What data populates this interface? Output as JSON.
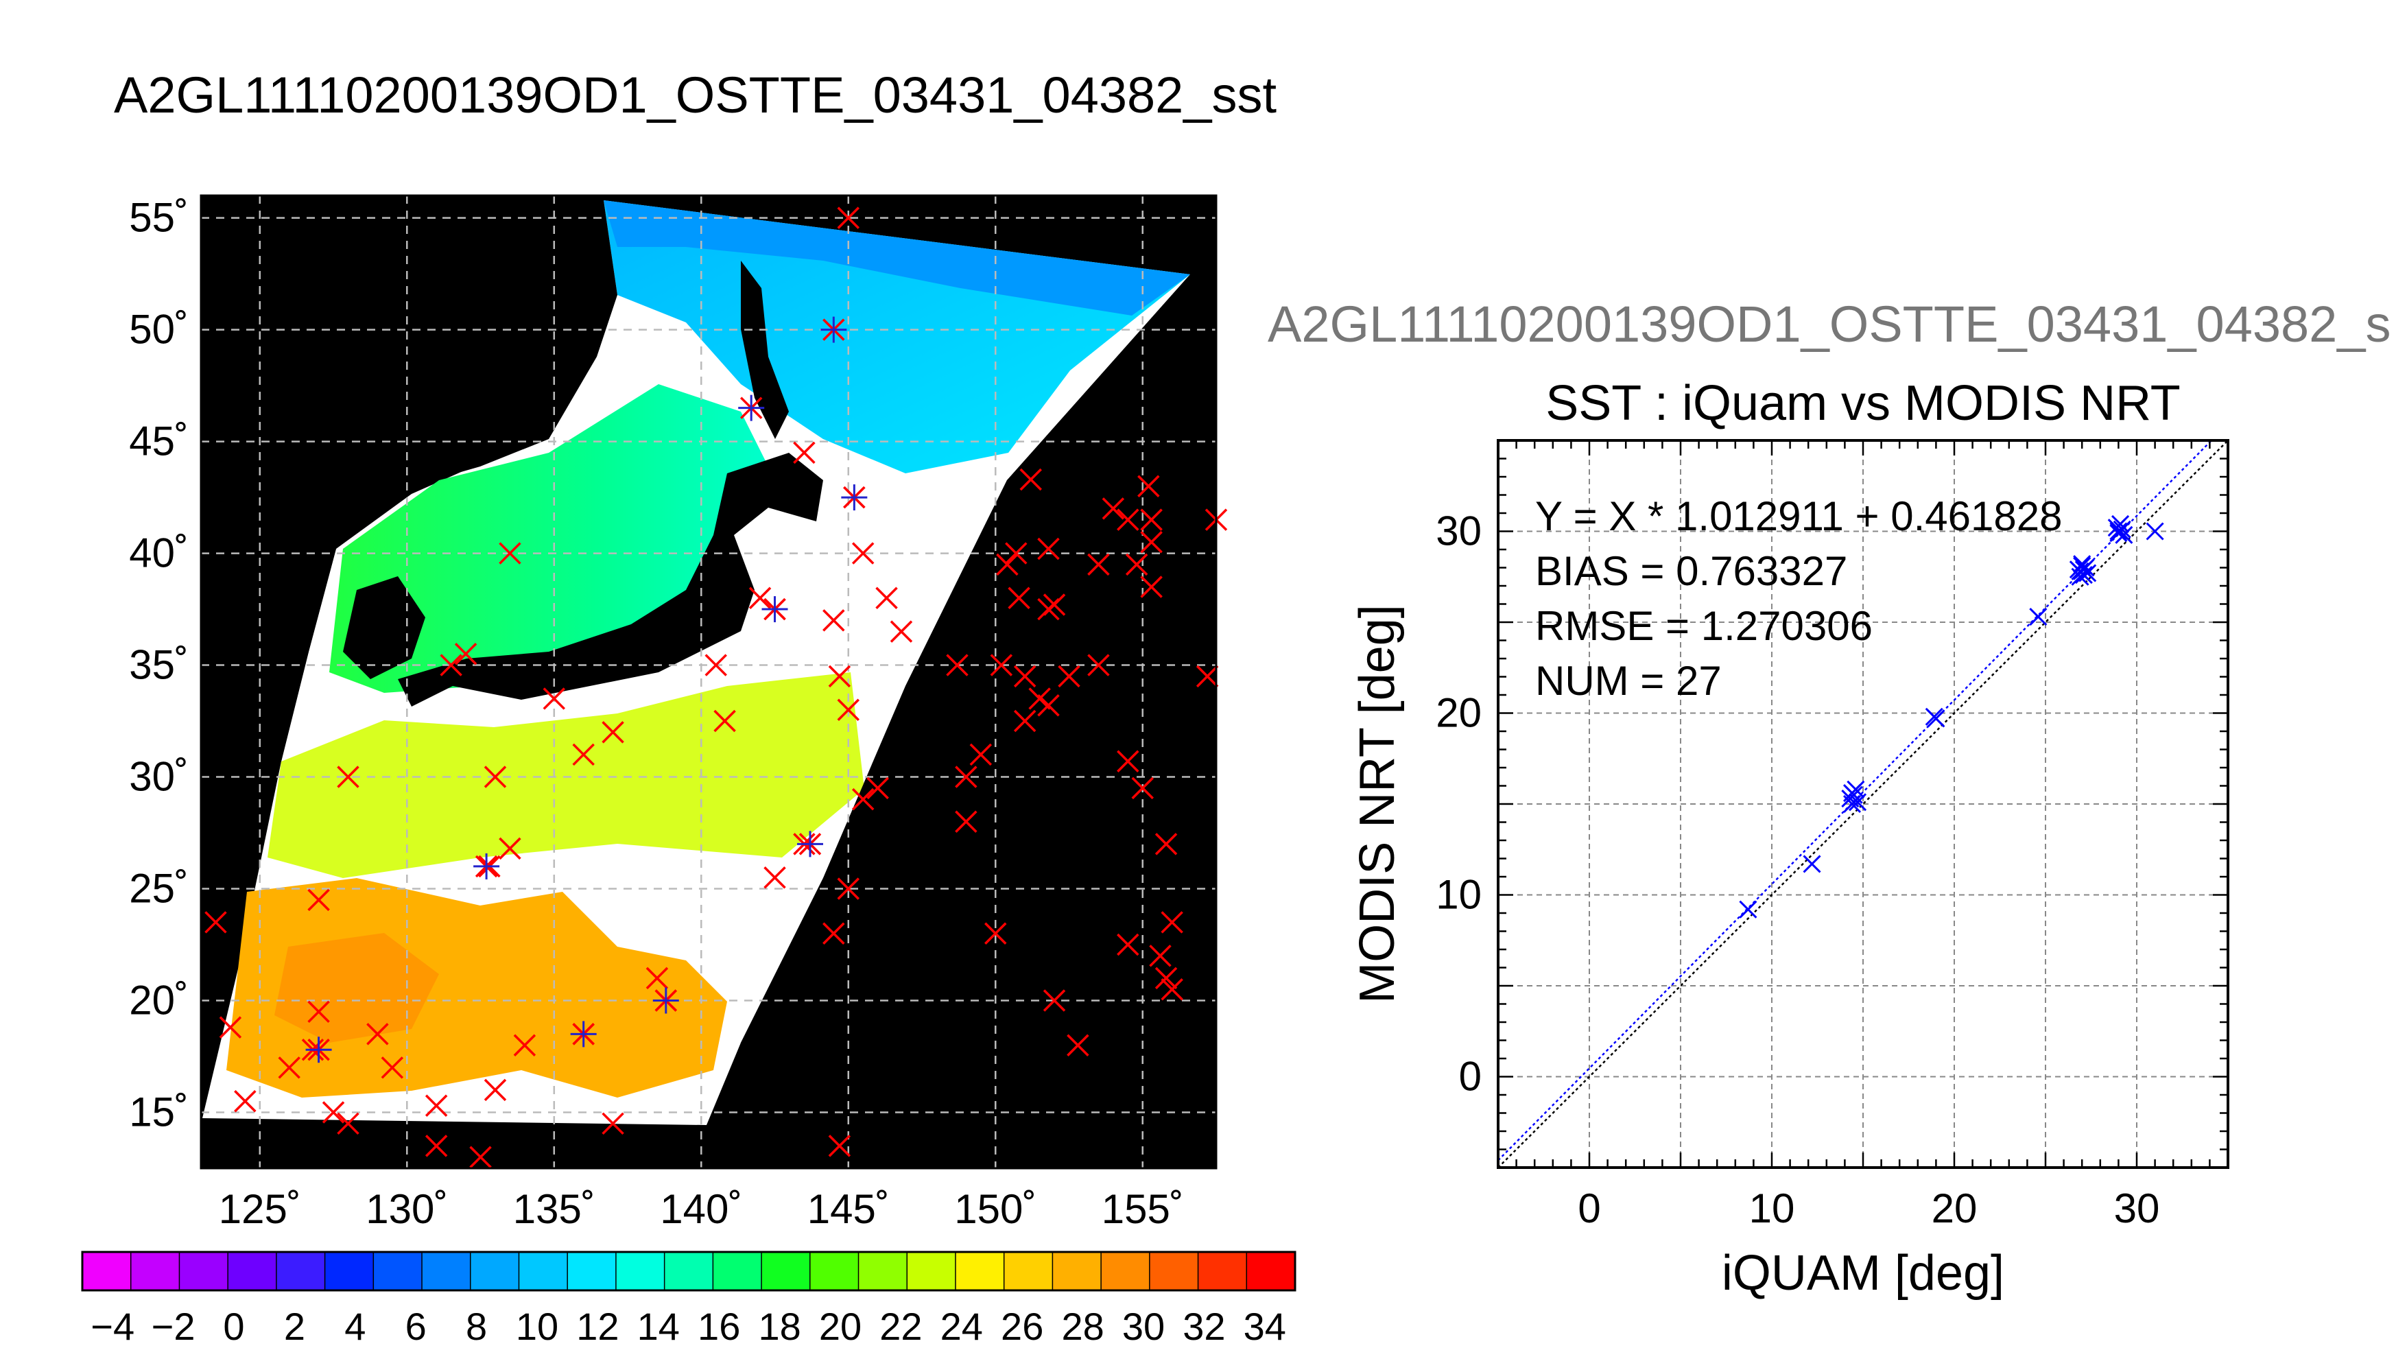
{
  "figure": {
    "title": "A2GL11110200139OD1_OSTTE_03431_04382_sst",
    "right_title": "A2GL11110200139OD1_OSTTE_03431_04382_s"
  },
  "map": {
    "lon_range": [
      123,
      157.5
    ],
    "lat_range": [
      12.5,
      56
    ],
    "lon_ticks": [
      125,
      130,
      135,
      140,
      145,
      150,
      155
    ],
    "lat_ticks": [
      15,
      20,
      25,
      30,
      35,
      40,
      45,
      50,
      55
    ],
    "lon_tick_labels": [
      "125˚",
      "130˚",
      "135˚",
      "140˚",
      "145˚",
      "150˚",
      "155˚"
    ],
    "lat_tick_labels": [
      "15˚",
      "20˚",
      "25˚",
      "30˚",
      "35˚",
      "40˚",
      "45˚",
      "50˚",
      "55˚"
    ],
    "grid": true,
    "colors": {
      "background": "#000000",
      "cloud": "#ffffff",
      "grid": "#bbbbbb",
      "marker": "#ff0000",
      "matched_marker": "#2222cc"
    },
    "markers_x": [
      [
        145,
        55
      ],
      [
        124,
        18.8
      ],
      [
        124.5,
        15.5
      ],
      [
        126,
        17
      ],
      [
        127,
        19.5
      ],
      [
        127,
        24.5
      ],
      [
        126.8,
        17.8
      ],
      [
        127.5,
        15
      ],
      [
        128,
        14.5
      ],
      [
        128,
        30
      ],
      [
        129,
        18.5
      ],
      [
        129.5,
        17
      ],
      [
        131,
        15.3
      ],
      [
        131,
        13.5
      ],
      [
        131.5,
        35
      ],
      [
        132,
        35.5
      ],
      [
        133,
        30
      ],
      [
        132.8,
        26
      ],
      [
        133.5,
        26.8
      ],
      [
        133.5,
        40
      ],
      [
        133,
        16
      ],
      [
        132.5,
        13
      ],
      [
        134,
        18
      ],
      [
        135,
        33.5
      ],
      [
        136,
        18.5
      ],
      [
        136,
        31
      ],
      [
        137,
        32
      ],
      [
        137,
        14.5
      ],
      [
        138.5,
        21
      ],
      [
        138.8,
        20
      ],
      [
        140.5,
        35
      ],
      [
        140.8,
        32.5
      ],
      [
        142,
        38
      ],
      [
        142.5,
        37.5
      ],
      [
        142.5,
        25.5
      ],
      [
        143.5,
        27
      ],
      [
        143.5,
        44.5
      ],
      [
        144.5,
        37
      ],
      [
        144.5,
        23
      ],
      [
        144.7,
        34.5
      ],
      [
        145,
        33
      ],
      [
        145,
        25
      ],
      [
        144.7,
        13.5
      ],
      [
        145.2,
        42.5
      ],
      [
        145.5,
        40
      ],
      [
        145.5,
        29
      ],
      [
        146,
        29.5
      ],
      [
        146.3,
        38
      ],
      [
        146.8,
        36.5
      ],
      [
        148.7,
        35
      ],
      [
        149,
        30
      ],
      [
        149,
        28
      ],
      [
        149.5,
        31
      ],
      [
        150,
        23
      ],
      [
        150.2,
        35
      ],
      [
        150.4,
        39.5
      ],
      [
        150.7,
        40
      ],
      [
        150.8,
        38
      ],
      [
        151,
        32.5
      ],
      [
        151,
        34.5
      ],
      [
        151.2,
        43.3
      ],
      [
        151.5,
        33.5
      ],
      [
        151.8,
        37.5
      ],
      [
        152,
        37.7
      ],
      [
        151.8,
        33.2
      ],
      [
        151.8,
        40.2
      ],
      [
        152,
        20
      ],
      [
        152.5,
        34.5
      ],
      [
        152.8,
        18
      ],
      [
        153.5,
        39.5
      ],
      [
        153.5,
        35
      ],
      [
        154,
        42
      ],
      [
        154.5,
        41.5
      ],
      [
        154.5,
        30.7
      ],
      [
        154.5,
        22.5
      ],
      [
        154.8,
        39.5
      ],
      [
        155,
        29.5
      ],
      [
        155.2,
        43
      ],
      [
        155.3,
        41.5
      ],
      [
        155.3,
        40.5
      ],
      [
        155.3,
        38.5
      ],
      [
        155.6,
        22
      ],
      [
        155.8,
        27
      ],
      [
        155.8,
        21
      ],
      [
        156,
        23.5
      ],
      [
        156,
        20.5
      ],
      [
        157.5,
        41.5
      ],
      [
        157.2,
        34.5
      ],
      [
        123.5,
        23.5
      ]
    ],
    "markers_matched": [
      [
        127,
        17.8
      ],
      [
        132.7,
        26
      ],
      [
        136,
        18.5
      ],
      [
        138.8,
        20
      ],
      [
        142.5,
        37.5
      ],
      [
        143.7,
        27
      ],
      [
        145.2,
        42.5
      ],
      [
        144.5,
        50
      ],
      [
        141.7,
        46.5
      ]
    ]
  },
  "colorbar": {
    "range": [
      -5,
      35
    ],
    "tick_labels": [
      "−4",
      "−2",
      "0",
      "2",
      "4",
      "6",
      "8",
      "10",
      "12",
      "14",
      "16",
      "18",
      "20",
      "22",
      "24",
      "26",
      "28",
      "30",
      "32",
      "34"
    ],
    "colors": [
      "#f000ff",
      "#c400ff",
      "#9a00ff",
      "#6e00ff",
      "#3c1cff",
      "#0028ff",
      "#0055ff",
      "#0080ff",
      "#00a8ff",
      "#00c8ff",
      "#00e6ff",
      "#00ffe0",
      "#00ffb0",
      "#00ff70",
      "#10ff20",
      "#50ff00",
      "#90ff00",
      "#c8ff00",
      "#fff000",
      "#ffd000",
      "#ffb000",
      "#ff8c00",
      "#ff6000",
      "#ff3000",
      "#ff0000"
    ]
  },
  "chart_data": {
    "type": "scatter",
    "title": "SST : iQuam vs MODIS NRT",
    "xlabel": "iQUAM [deg]",
    "ylabel": "MODIS NRT [deg]",
    "xlim": [
      -5,
      35
    ],
    "ylim": [
      -5,
      35
    ],
    "xticks": [
      0,
      10,
      20,
      30
    ],
    "yticks": [
      0,
      10,
      20,
      30
    ],
    "grid": true,
    "annotations": [
      "Y = X * 1.012911 + 0.461828",
      "BIAS = 0.763327",
      "RMSE = 1.270306",
      "NUM = 27"
    ],
    "fit": {
      "slope": 1.012911,
      "intercept": 0.461828
    },
    "marker_color": "#0000ff",
    "points": [
      [
        8.7,
        9.2
      ],
      [
        12.2,
        11.7
      ],
      [
        14.4,
        15.0
      ],
      [
        14.5,
        15.5
      ],
      [
        14.6,
        15.8
      ],
      [
        14.3,
        15.3
      ],
      [
        14.7,
        15.1
      ],
      [
        18.9,
        19.8
      ],
      [
        19.0,
        19.7
      ],
      [
        24.6,
        25.3
      ],
      [
        26.9,
        27.8
      ],
      [
        27.0,
        28.1
      ],
      [
        27.1,
        27.6
      ],
      [
        27.2,
        28.0
      ],
      [
        26.8,
        27.9
      ],
      [
        27.3,
        27.7
      ],
      [
        27.0,
        28.2
      ],
      [
        29.0,
        29.9
      ],
      [
        29.1,
        30.4
      ],
      [
        29.2,
        30.1
      ],
      [
        28.9,
        30.2
      ],
      [
        29.3,
        29.8
      ],
      [
        31.0,
        30.0
      ],
      [
        26.9,
        27.5
      ],
      [
        29.0,
        30.0
      ],
      [
        27.1,
        27.9
      ],
      [
        14.4,
        15.6
      ]
    ]
  }
}
